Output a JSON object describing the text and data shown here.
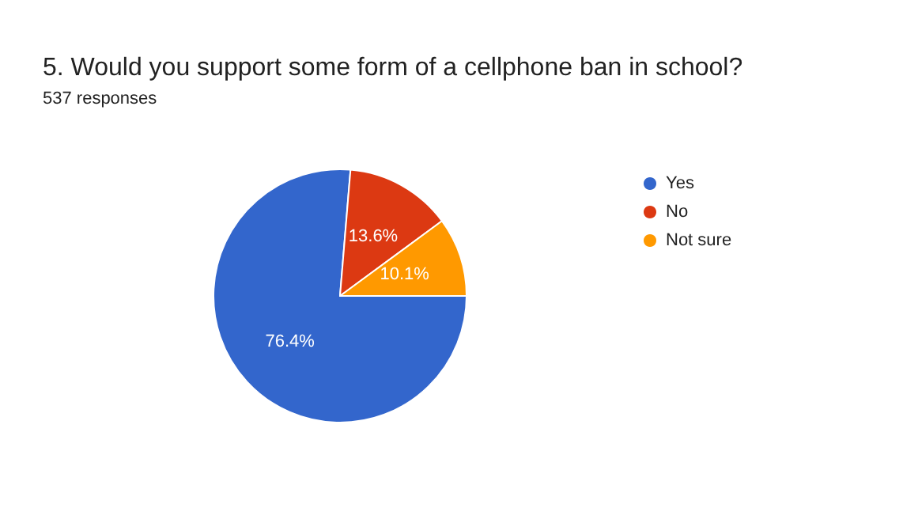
{
  "chart_data": {
    "type": "pie",
    "title": "5. Would you support some form of a cellphone ban in school?",
    "subtitle": "537 responses",
    "categories": [
      "Yes",
      "No",
      "Not sure"
    ],
    "values": [
      76.4,
      13.6,
      10.1
    ],
    "value_labels": [
      "76.4%",
      "13.6%",
      "10.1%"
    ],
    "colors": [
      "#3366cc",
      "#dc3912",
      "#ff9900"
    ],
    "legend": "right"
  }
}
